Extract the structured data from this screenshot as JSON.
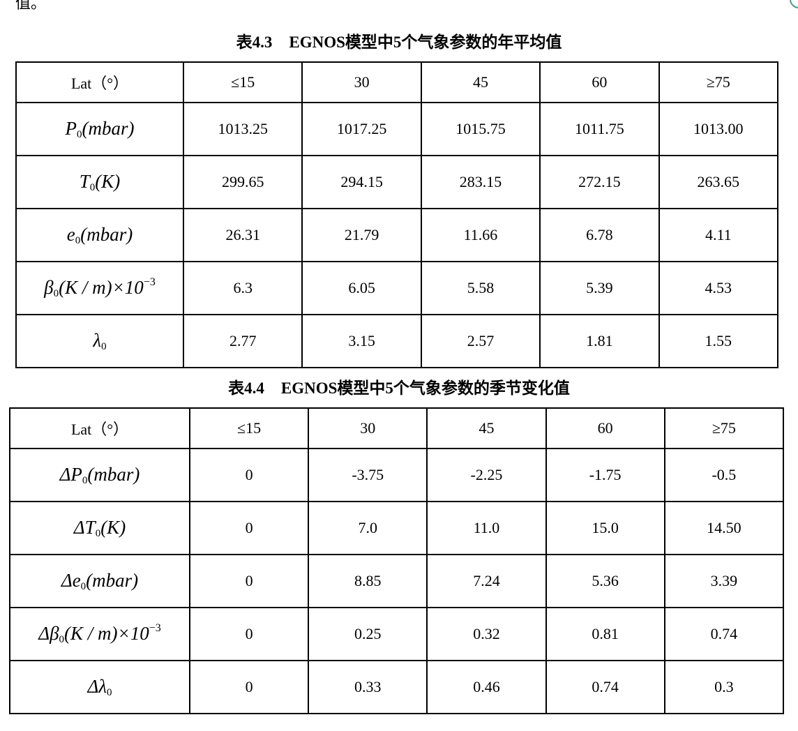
{
  "page": {
    "top_fragment": "值。"
  },
  "tables": [
    {
      "caption_number": "表4.3",
      "caption_text": "EGNOS模型中5个气象参数的年平均值",
      "header": {
        "label": "Lat（°）",
        "columns": [
          "≤15",
          "30",
          "45",
          "60",
          "≥75"
        ]
      },
      "rows": [
        {
          "delta": "",
          "symbol": "P",
          "subscript": "0",
          "unit": "(mbar)",
          "exponent": "",
          "values": [
            "1013.25",
            "1017.25",
            "1015.75",
            "1011.75",
            "1013.00"
          ]
        },
        {
          "delta": "",
          "symbol": "T",
          "subscript": "0",
          "unit": "(K)",
          "exponent": "",
          "values": [
            "299.65",
            "294.15",
            "283.15",
            "272.15",
            "263.65"
          ]
        },
        {
          "delta": "",
          "symbol": "e",
          "subscript": "0",
          "unit": "(mbar)",
          "exponent": "",
          "values": [
            "26.31",
            "21.79",
            "11.66",
            "6.78",
            "4.11"
          ]
        },
        {
          "delta": "",
          "symbol": "β",
          "subscript": "0",
          "unit": "(K / m)×10",
          "exponent": "−3",
          "values": [
            "6.3",
            "6.05",
            "5.58",
            "5.39",
            "4.53"
          ]
        },
        {
          "delta": "",
          "symbol": "λ",
          "subscript": "0",
          "unit": "",
          "exponent": "",
          "values": [
            "2.77",
            "3.15",
            "2.57",
            "1.81",
            "1.55"
          ]
        }
      ]
    },
    {
      "caption_number": "表4.4",
      "caption_text": "EGNOS模型中5个气象参数的季节变化值",
      "header": {
        "label": "Lat（°）",
        "columns": [
          "≤15",
          "30",
          "45",
          "60",
          "≥75"
        ]
      },
      "rows": [
        {
          "delta": "Δ",
          "symbol": "P",
          "subscript": "0",
          "unit": "(mbar)",
          "exponent": "",
          "values": [
            "0",
            "-3.75",
            "-2.25",
            "-1.75",
            "-0.5"
          ]
        },
        {
          "delta": "Δ",
          "symbol": "T",
          "subscript": "0",
          "unit": "(K)",
          "exponent": "",
          "values": [
            "0",
            "7.0",
            "11.0",
            "15.0",
            "14.50"
          ]
        },
        {
          "delta": "Δ",
          "symbol": "e",
          "subscript": "0",
          "unit": "(mbar)",
          "exponent": "",
          "values": [
            "0",
            "8.85",
            "7.24",
            "5.36",
            "3.39"
          ]
        },
        {
          "delta": "Δ",
          "symbol": "β",
          "subscript": "0",
          "unit": "(K / m)×10",
          "exponent": "−3",
          "values": [
            "0",
            "0.25",
            "0.32",
            "0.81",
            "0.74"
          ]
        },
        {
          "delta": "Δ",
          "symbol": "λ",
          "subscript": "0",
          "unit": "",
          "exponent": "",
          "values": [
            "0",
            "0.33",
            "0.46",
            "0.74",
            "0.3"
          ]
        }
      ]
    }
  ]
}
